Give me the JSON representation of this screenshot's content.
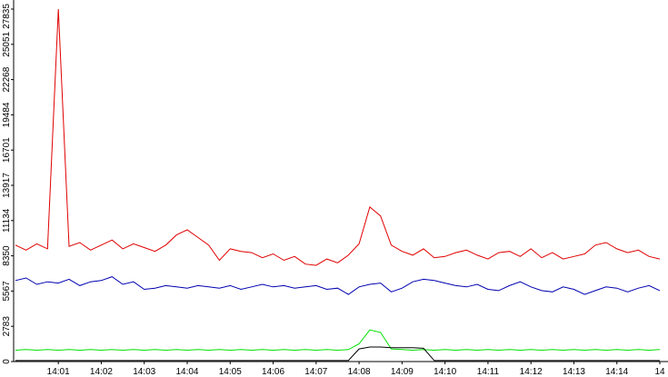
{
  "chart_data": {
    "type": "line",
    "x": [
      0,
      0.25,
      0.5,
      0.75,
      1,
      1.25,
      1.5,
      1.75,
      2,
      2.25,
      2.5,
      2.75,
      3,
      3.25,
      3.5,
      3.75,
      4,
      4.25,
      4.5,
      4.75,
      5,
      5.25,
      5.5,
      5.75,
      6,
      6.25,
      6.5,
      6.75,
      7,
      7.25,
      7.5,
      7.75,
      8,
      8.25,
      8.5,
      8.75,
      9,
      9.25,
      9.5,
      9.75,
      10,
      10.25,
      10.5,
      10.75,
      11,
      11.25,
      11.5,
      11.75,
      12,
      12.25,
      12.5,
      12.75,
      13,
      13.25,
      13.5,
      13.75,
      14,
      14.25,
      14.5,
      14.75,
      15
    ],
    "series": [
      {
        "color": "#e00000",
        "values": [
          9200,
          8800,
          9300,
          8900,
          27835,
          9100,
          9400,
          8800,
          9200,
          9600,
          8900,
          9300,
          9000,
          8700,
          9200,
          10000,
          10400,
          9800,
          9200,
          8000,
          8900,
          8700,
          8600,
          8200,
          8500,
          8000,
          8300,
          7700,
          7600,
          8100,
          7800,
          8400,
          9300,
          12200,
          11500,
          9200,
          8700,
          8400,
          8900,
          8200,
          8300,
          8600,
          8800,
          8400,
          8100,
          8600,
          8700,
          8300,
          8900,
          8200,
          8600,
          8100,
          8300,
          8500,
          9200,
          9400,
          8900,
          8600,
          8800,
          8300,
          8100
        ]
      },
      {
        "color": "#0000b0",
        "values": [
          6400,
          6600,
          6100,
          6300,
          6200,
          6500,
          6000,
          6300,
          6400,
          6700,
          6100,
          6300,
          5700,
          5800,
          6000,
          5900,
          5800,
          6000,
          5900,
          5800,
          6000,
          5700,
          5900,
          6100,
          5900,
          6000,
          5800,
          5900,
          6000,
          5700,
          5800,
          5300,
          5900,
          6100,
          6200,
          5500,
          5800,
          6300,
          6500,
          6400,
          6200,
          6000,
          5900,
          6100,
          5700,
          5600,
          6000,
          6300,
          5900,
          5600,
          5500,
          5900,
          5700,
          5300,
          5600,
          5900,
          5800,
          5500,
          5800,
          6000,
          5600
        ]
      },
      {
        "color": "#00e000",
        "values": [
          900,
          950,
          900,
          950,
          900,
          950,
          900,
          950,
          900,
          950,
          900,
          950,
          900,
          950,
          900,
          950,
          900,
          950,
          900,
          950,
          900,
          950,
          900,
          950,
          900,
          950,
          900,
          950,
          900,
          950,
          900,
          950,
          1400,
          2500,
          2300,
          1000,
          950,
          900,
          950,
          900,
          950,
          900,
          950,
          900,
          950,
          900,
          950,
          900,
          950,
          900,
          950,
          900,
          950,
          900,
          950,
          900,
          950,
          900,
          950,
          900,
          950
        ]
      },
      {
        "color": "#000000",
        "values": [
          80,
          80,
          80,
          80,
          80,
          80,
          80,
          80,
          80,
          80,
          80,
          80,
          80,
          80,
          80,
          80,
          80,
          80,
          80,
          80,
          80,
          80,
          80,
          80,
          80,
          80,
          80,
          80,
          80,
          80,
          80,
          80,
          1000,
          1150,
          1150,
          1100,
          1100,
          1100,
          1050,
          80,
          80,
          80,
          80,
          80,
          80,
          80,
          80,
          80,
          80,
          80,
          80,
          80,
          80,
          80,
          80,
          80,
          80,
          80,
          80,
          80,
          80
        ]
      }
    ],
    "xlim": [
      -0.04,
      15.19
    ],
    "xticks": [
      {
        "value": 1,
        "label": "14:01"
      },
      {
        "value": 2,
        "label": "14:02"
      },
      {
        "value": 3,
        "label": "14:03"
      },
      {
        "value": 4,
        "label": "14:04"
      },
      {
        "value": 5,
        "label": "14:05"
      },
      {
        "value": 6,
        "label": "14:06"
      },
      {
        "value": 7,
        "label": "14:07"
      },
      {
        "value": 8,
        "label": "14:08"
      },
      {
        "value": 9,
        "label": "14:09"
      },
      {
        "value": 10,
        "label": "14:10"
      },
      {
        "value": 11,
        "label": "14:11"
      },
      {
        "value": 12,
        "label": "14:12"
      },
      {
        "value": 13,
        "label": "14:13"
      },
      {
        "value": 14,
        "label": "14:14"
      },
      {
        "value": 15,
        "label": "14"
      }
    ],
    "ylim": [
      0,
      27835
    ],
    "yticks": [
      0,
      2783,
      5567,
      8350,
      11134,
      13917,
      16701,
      19484,
      22268,
      25051,
      27835
    ]
  }
}
